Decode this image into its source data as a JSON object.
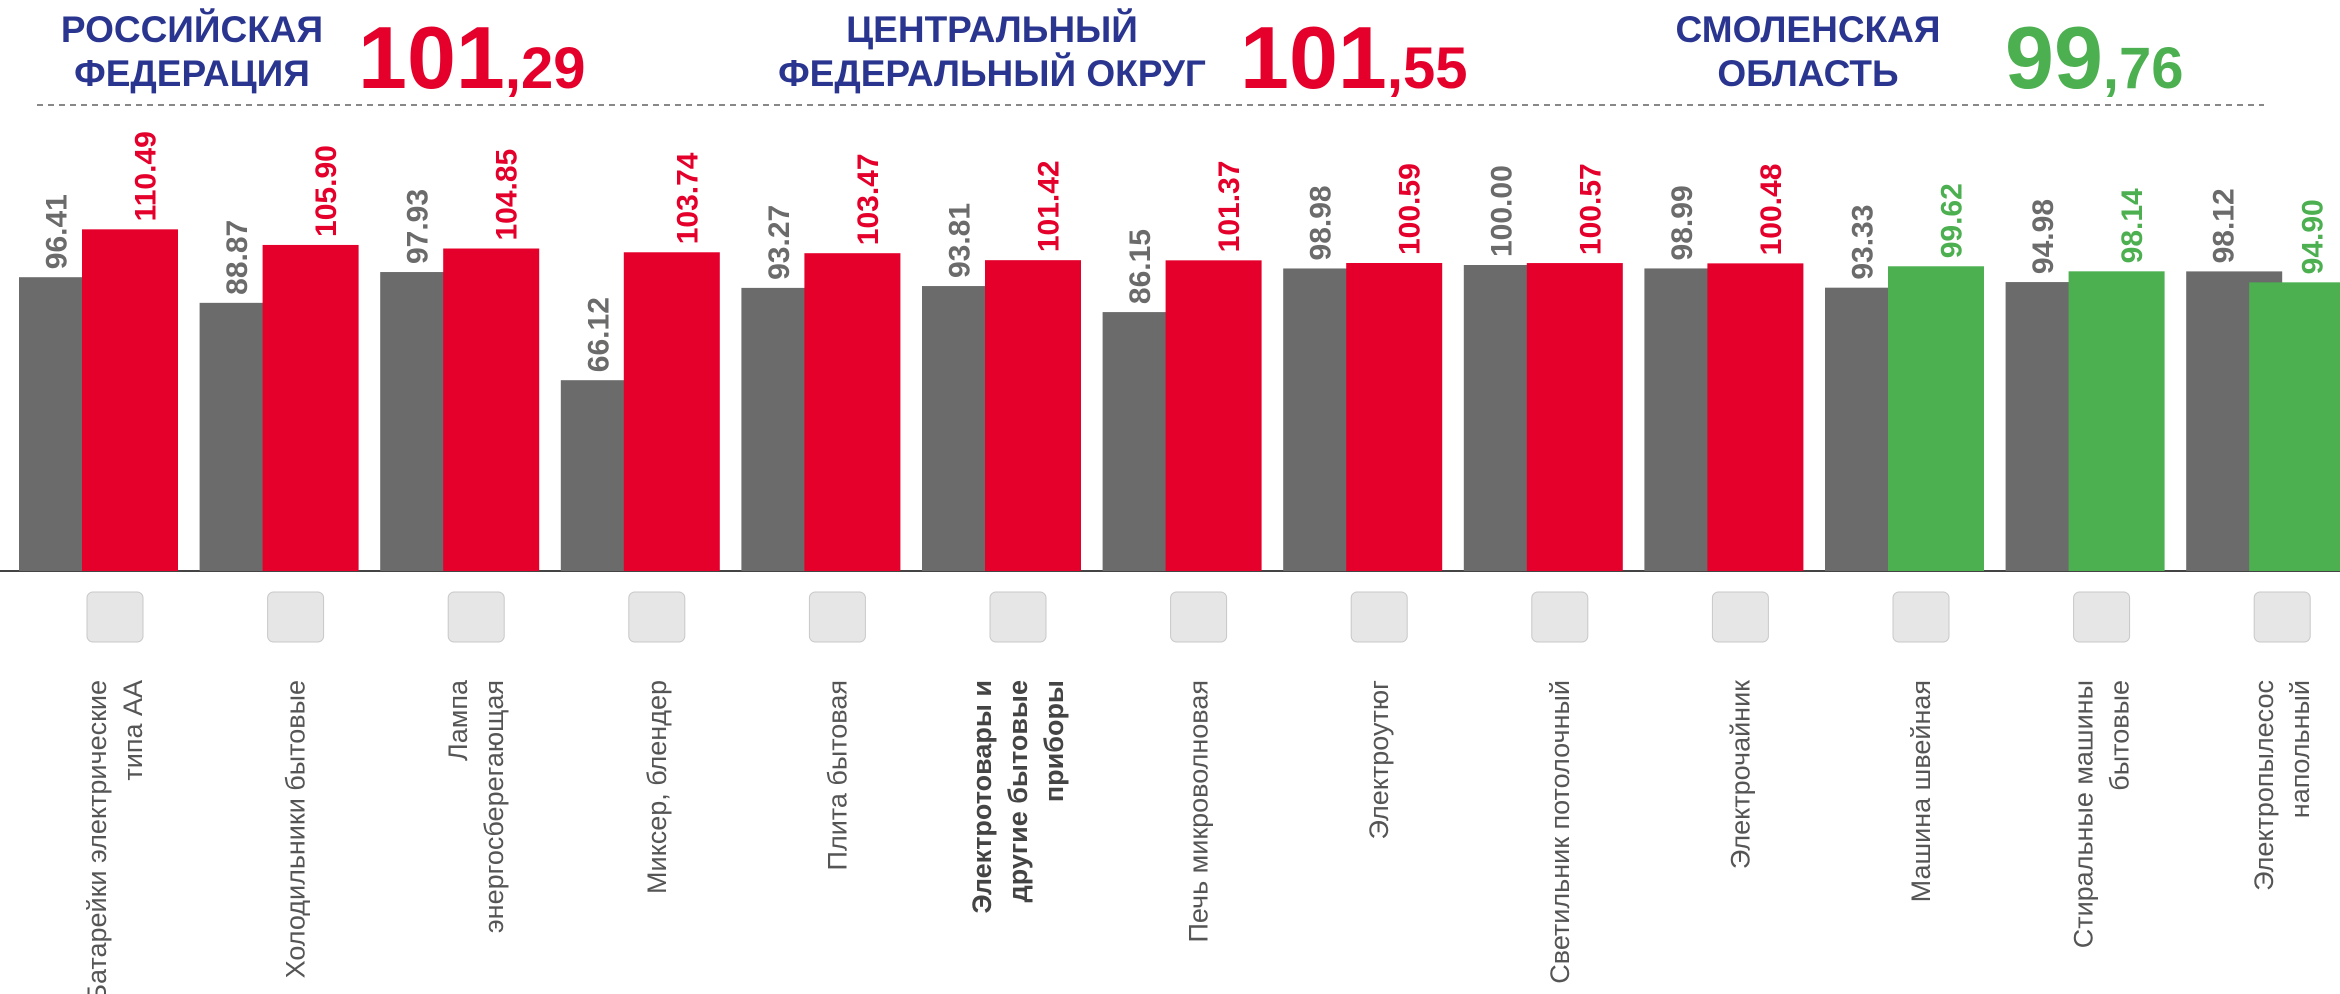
{
  "headers": [
    {
      "lines": [
        "РОССИЙСКАЯ",
        "ФЕДЕРАЦИЯ"
      ],
      "value_parts": [
        "101",
        ",29"
      ],
      "color": "#e4002b"
    },
    {
      "lines": [
        "ЦЕНТРАЛЬНЫЙ",
        "ФЕДЕРАЛЬНЫЙ ОКРУГ"
      ],
      "value_parts": [
        "101",
        ",55"
      ],
      "color": "#e4002b"
    },
    {
      "lines": [
        "СМОЛЕНСКАЯ",
        "ОБЛАСТЬ"
      ],
      "value_parts": [
        "99",
        ",76"
      ],
      "color": "#4caf50"
    }
  ],
  "chart_data": {
    "type": "bar",
    "categories": [
      [
        "Батарейки электрические",
        "типа АА"
      ],
      [
        "Холодильники бытовые"
      ],
      [
        "Лампа",
        "энергосберегающая"
      ],
      [
        "Миксер, блендер"
      ],
      [
        "Плита бытовая"
      ],
      [
        "Электротовары и",
        "другие бытовые",
        "приборы"
      ],
      [
        "Печь микроволновая"
      ],
      [
        "Электроутюг"
      ],
      [
        "Светильник потолочный"
      ],
      [
        "Электрочайник"
      ],
      [
        "Машина швейная"
      ],
      [
        "Стиральные машины",
        "бытовые"
      ],
      [
        "Электропылесос",
        "напольный"
      ]
    ],
    "category_bold": [
      false,
      false,
      false,
      false,
      false,
      true,
      false,
      false,
      false,
      false,
      false,
      false,
      false
    ],
    "series": [
      {
        "color": "#6b6b6b",
        "values": [
          96.41,
          88.87,
          97.93,
          66.12,
          93.27,
          93.81,
          86.15,
          98.98,
          100.0,
          98.99,
          93.33,
          94.98,
          98.12
        ],
        "value_labels": [
          "96.41",
          "88.87",
          "97.93",
          "66.12",
          "93.27",
          "93.81",
          "86.15",
          "98.98",
          "100.00",
          "98.99",
          "93.33",
          "94.98",
          "98.12"
        ]
      },
      {
        "colors": [
          "#e4002b",
          "#e4002b",
          "#e4002b",
          "#e4002b",
          "#e4002b",
          "#e4002b",
          "#e4002b",
          "#e4002b",
          "#e4002b",
          "#e4002b",
          "#4caf50",
          "#4caf50",
          "#4caf50"
        ],
        "values": [
          110.49,
          105.9,
          104.85,
          103.74,
          103.47,
          101.42,
          101.37,
          100.59,
          100.57,
          100.48,
          99.62,
          98.14,
          94.9
        ],
        "value_labels": [
          "110.49",
          "105.90",
          "104.85",
          "103.74",
          "103.47",
          "101.42",
          "101.37",
          "100.59",
          "100.57",
          "100.48",
          "99.62",
          "98.14",
          "94.90"
        ]
      }
    ],
    "ylim": [
      10,
      120
    ]
  }
}
